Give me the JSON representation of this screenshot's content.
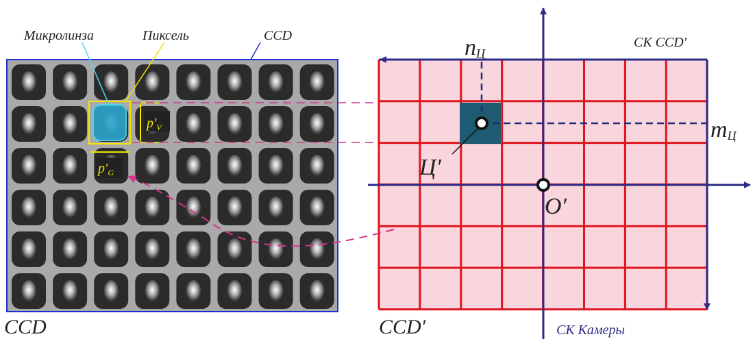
{
  "labels": {
    "microlens": "Микролинза",
    "pixel": "Пиксель",
    "ccd_top": "CCD",
    "pv": {
      "main": "p′",
      "sub": "V"
    },
    "pg": {
      "main": "p′",
      "sub": "G"
    },
    "ccd_bottom": "CCD",
    "ccd_prime": "CCD′",
    "n_axis": {
      "main": "n",
      "sub": "Ц"
    },
    "m_axis": {
      "main": "m",
      "sub": "Ц"
    },
    "sk_ccd": "СК CCD′",
    "center": "Ц′",
    "origin": "O′",
    "sk_camera": "СК Камеры"
  }
}
